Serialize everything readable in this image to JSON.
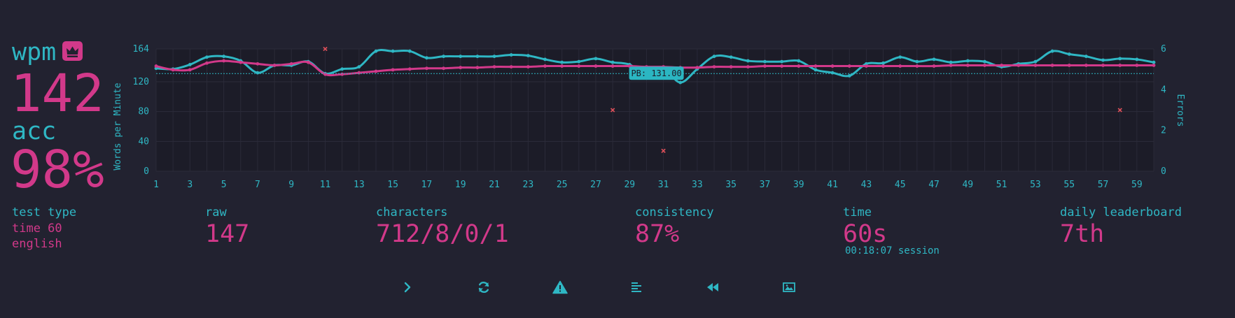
{
  "stats": {
    "wpm_label": "wpm",
    "wpm_value": "142",
    "acc_label": "acc",
    "acc_value": "98%",
    "test_type_label": "test type",
    "test_type_lines": [
      "time 60",
      "english"
    ],
    "raw_label": "raw",
    "raw_value": "147",
    "characters_label": "characters",
    "characters_value": "712/8/0/1",
    "consistency_label": "consistency",
    "consistency_value": "87%",
    "time_label": "time",
    "time_value": "60s",
    "session_text": "00:18:07 session",
    "leaderboard_label": "daily leaderboard",
    "leaderboard_value": "7th"
  },
  "buttons": [
    {
      "name": "next-test-button",
      "icon": "chevron-right-icon"
    },
    {
      "name": "restart-button",
      "icon": "refresh-icon"
    },
    {
      "name": "report-button",
      "icon": "warning-icon"
    },
    {
      "name": "words-history-button",
      "icon": "align-left-icon"
    },
    {
      "name": "replay-button",
      "icon": "backward-icon"
    },
    {
      "name": "screenshot-button",
      "icon": "image-icon"
    }
  ],
  "colors": {
    "background": "#222230",
    "chart_bg": "#1c1c28",
    "cyan": "#2fb7c4",
    "pink": "#d2398a",
    "error": "#e0505a",
    "pb_box": "#2bb6c2"
  },
  "chart_data": {
    "type": "line",
    "ylabel": "Words per Minute",
    "y2label": "Errors",
    "x": [
      1,
      2,
      3,
      4,
      5,
      6,
      7,
      8,
      9,
      10,
      11,
      12,
      13,
      14,
      15,
      16,
      17,
      18,
      19,
      20,
      21,
      22,
      23,
      24,
      25,
      26,
      27,
      28,
      29,
      30,
      31,
      32,
      33,
      34,
      35,
      36,
      37,
      38,
      39,
      40,
      41,
      42,
      43,
      44,
      45,
      46,
      47,
      48,
      49,
      50,
      51,
      52,
      53,
      54,
      55,
      56,
      57,
      58,
      59,
      60
    ],
    "xticks": [
      1,
      3,
      5,
      7,
      9,
      11,
      13,
      15,
      17,
      19,
      21,
      23,
      25,
      27,
      29,
      31,
      33,
      35,
      37,
      39,
      41,
      43,
      45,
      47,
      49,
      51,
      53,
      55,
      57,
      59
    ],
    "xlim": [
      1,
      60
    ],
    "yticks": [
      0,
      40,
      80,
      120,
      164
    ],
    "ylim": [
      0,
      164
    ],
    "y2ticks": [
      0,
      2,
      4,
      6
    ],
    "y2lim": [
      0,
      6
    ],
    "series": [
      {
        "name": "raw",
        "color": "#2fb7c4",
        "values": [
          138,
          137,
          143,
          153,
          154,
          148,
          132,
          142,
          142,
          147,
          131,
          137,
          140,
          161,
          161,
          161,
          152,
          154,
          154,
          154,
          154,
          156,
          155,
          150,
          146,
          147,
          151,
          146,
          143,
          129,
          138,
          119,
          137,
          154,
          153,
          148,
          147,
          147,
          148,
          136,
          132,
          128,
          144,
          145,
          153,
          147,
          150,
          146,
          148,
          147,
          140,
          144,
          147,
          161,
          157,
          154,
          149,
          151,
          150,
          146
        ],
        "point_values": [
          138,
          137,
          143,
          153,
          154,
          148,
          132,
          142,
          142,
          147,
          131,
          137,
          140,
          161,
          161,
          161,
          152,
          154,
          154,
          154,
          154,
          156,
          155,
          150,
          146,
          147,
          151,
          146,
          143,
          129,
          138,
          119,
          137,
          154,
          153,
          148,
          147,
          147,
          148,
          136,
          132,
          128,
          144,
          145,
          153,
          147,
          150,
          146,
          148,
          147,
          140,
          144,
          147,
          161,
          157,
          154,
          149,
          151,
          150,
          146
        ]
      },
      {
        "name": "wpm",
        "color": "#d2398a",
        "values": [
          141,
          136,
          136,
          145,
          148,
          146,
          144,
          142,
          144,
          146,
          130,
          130,
          132,
          134,
          136,
          137,
          138,
          138,
          139,
          139,
          140,
          140,
          140,
          141,
          141,
          141,
          141,
          141,
          141,
          140,
          140,
          139,
          139,
          140,
          140,
          140,
          141,
          141,
          141,
          141,
          141,
          141,
          141,
          141,
          141,
          141,
          141,
          142,
          142,
          142,
          142,
          142,
          142,
          142,
          142,
          142,
          142,
          142,
          142,
          142
        ]
      }
    ],
    "errors": [
      {
        "x": 11,
        "y": 6
      },
      {
        "x": 28,
        "y": 3
      },
      {
        "x": 31,
        "y": 1
      },
      {
        "x": 58,
        "y": 3
      }
    ],
    "pb": {
      "value": 131,
      "label": "PB: 131.00",
      "x": 31
    }
  }
}
